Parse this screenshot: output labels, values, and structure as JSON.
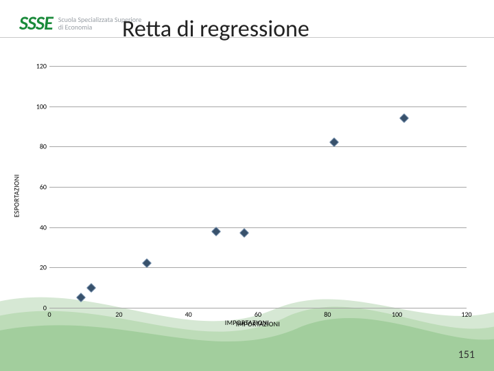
{
  "logo": {
    "mark": "SSSE",
    "sub_line1": "Scuola Specializzata Superiore",
    "sub_line2": "di Economia",
    "mark_color": "#1a8a3a",
    "sub_color": "#9aa0a6"
  },
  "title": "Retta di regressione",
  "title_fontsize": 34,
  "title_color": "#222222",
  "page_number": "151",
  "chart": {
    "type": "scatter",
    "xlabel": "IMPORTAZIONI",
    "ylabel": "ESPORTAZIONI",
    "label_fontsize": 10,
    "xlim": [
      0,
      120
    ],
    "ylim": [
      0,
      120
    ],
    "xticks": [
      0,
      20,
      40,
      60,
      80,
      100,
      120
    ],
    "yticks": [
      0,
      20,
      40,
      60,
      80,
      100,
      120
    ],
    "ytick_step": 20,
    "xtick_step": 20,
    "gridline_color": "#a6a6a6",
    "background_color": "#ffffff",
    "marker_style": "diamond",
    "marker_size": 10,
    "marker_fill": "#38516b",
    "marker_edge": "#6f8aa8",
    "points": [
      {
        "x": 9,
        "y": 5
      },
      {
        "x": 12,
        "y": 10
      },
      {
        "x": 28,
        "y": 22
      },
      {
        "x": 48,
        "y": 38
      },
      {
        "x": 56,
        "y": 37
      },
      {
        "x": 82,
        "y": 82
      },
      {
        "x": 102,
        "y": 94
      }
    ]
  },
  "waves": {
    "color_light": "#d6e8d4",
    "color_mid": "#a9d1a1",
    "color_dark": "#6fb46a"
  }
}
